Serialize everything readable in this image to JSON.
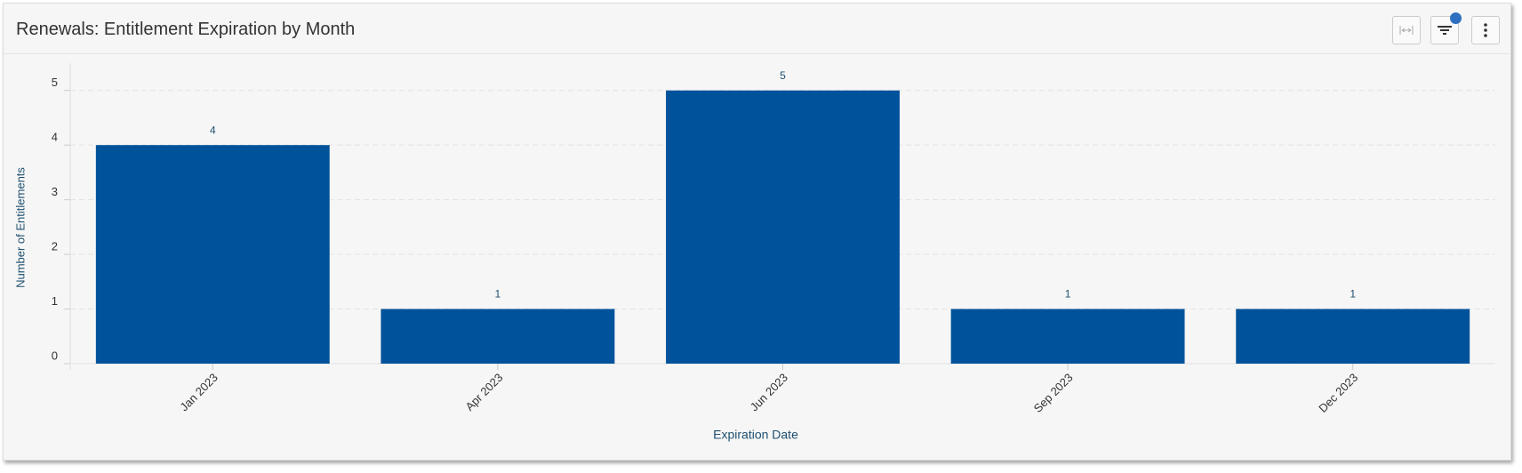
{
  "chart_data": {
    "type": "bar",
    "title": "Renewals: Entitlement Expiration by Month",
    "x_label": "Expiration Date",
    "y_label": "Number of Entitlements",
    "categories": [
      "Jan 2023",
      "Apr 2023",
      "Jun 2023",
      "Sep 2023",
      "Dec 2023"
    ],
    "values": [
      4,
      1,
      5,
      1,
      1
    ],
    "color": "#00529b",
    "ylim": [
      0,
      5.5
    ],
    "yticks": [
      0,
      1,
      2,
      3,
      4,
      5
    ],
    "grid": true
  }
}
